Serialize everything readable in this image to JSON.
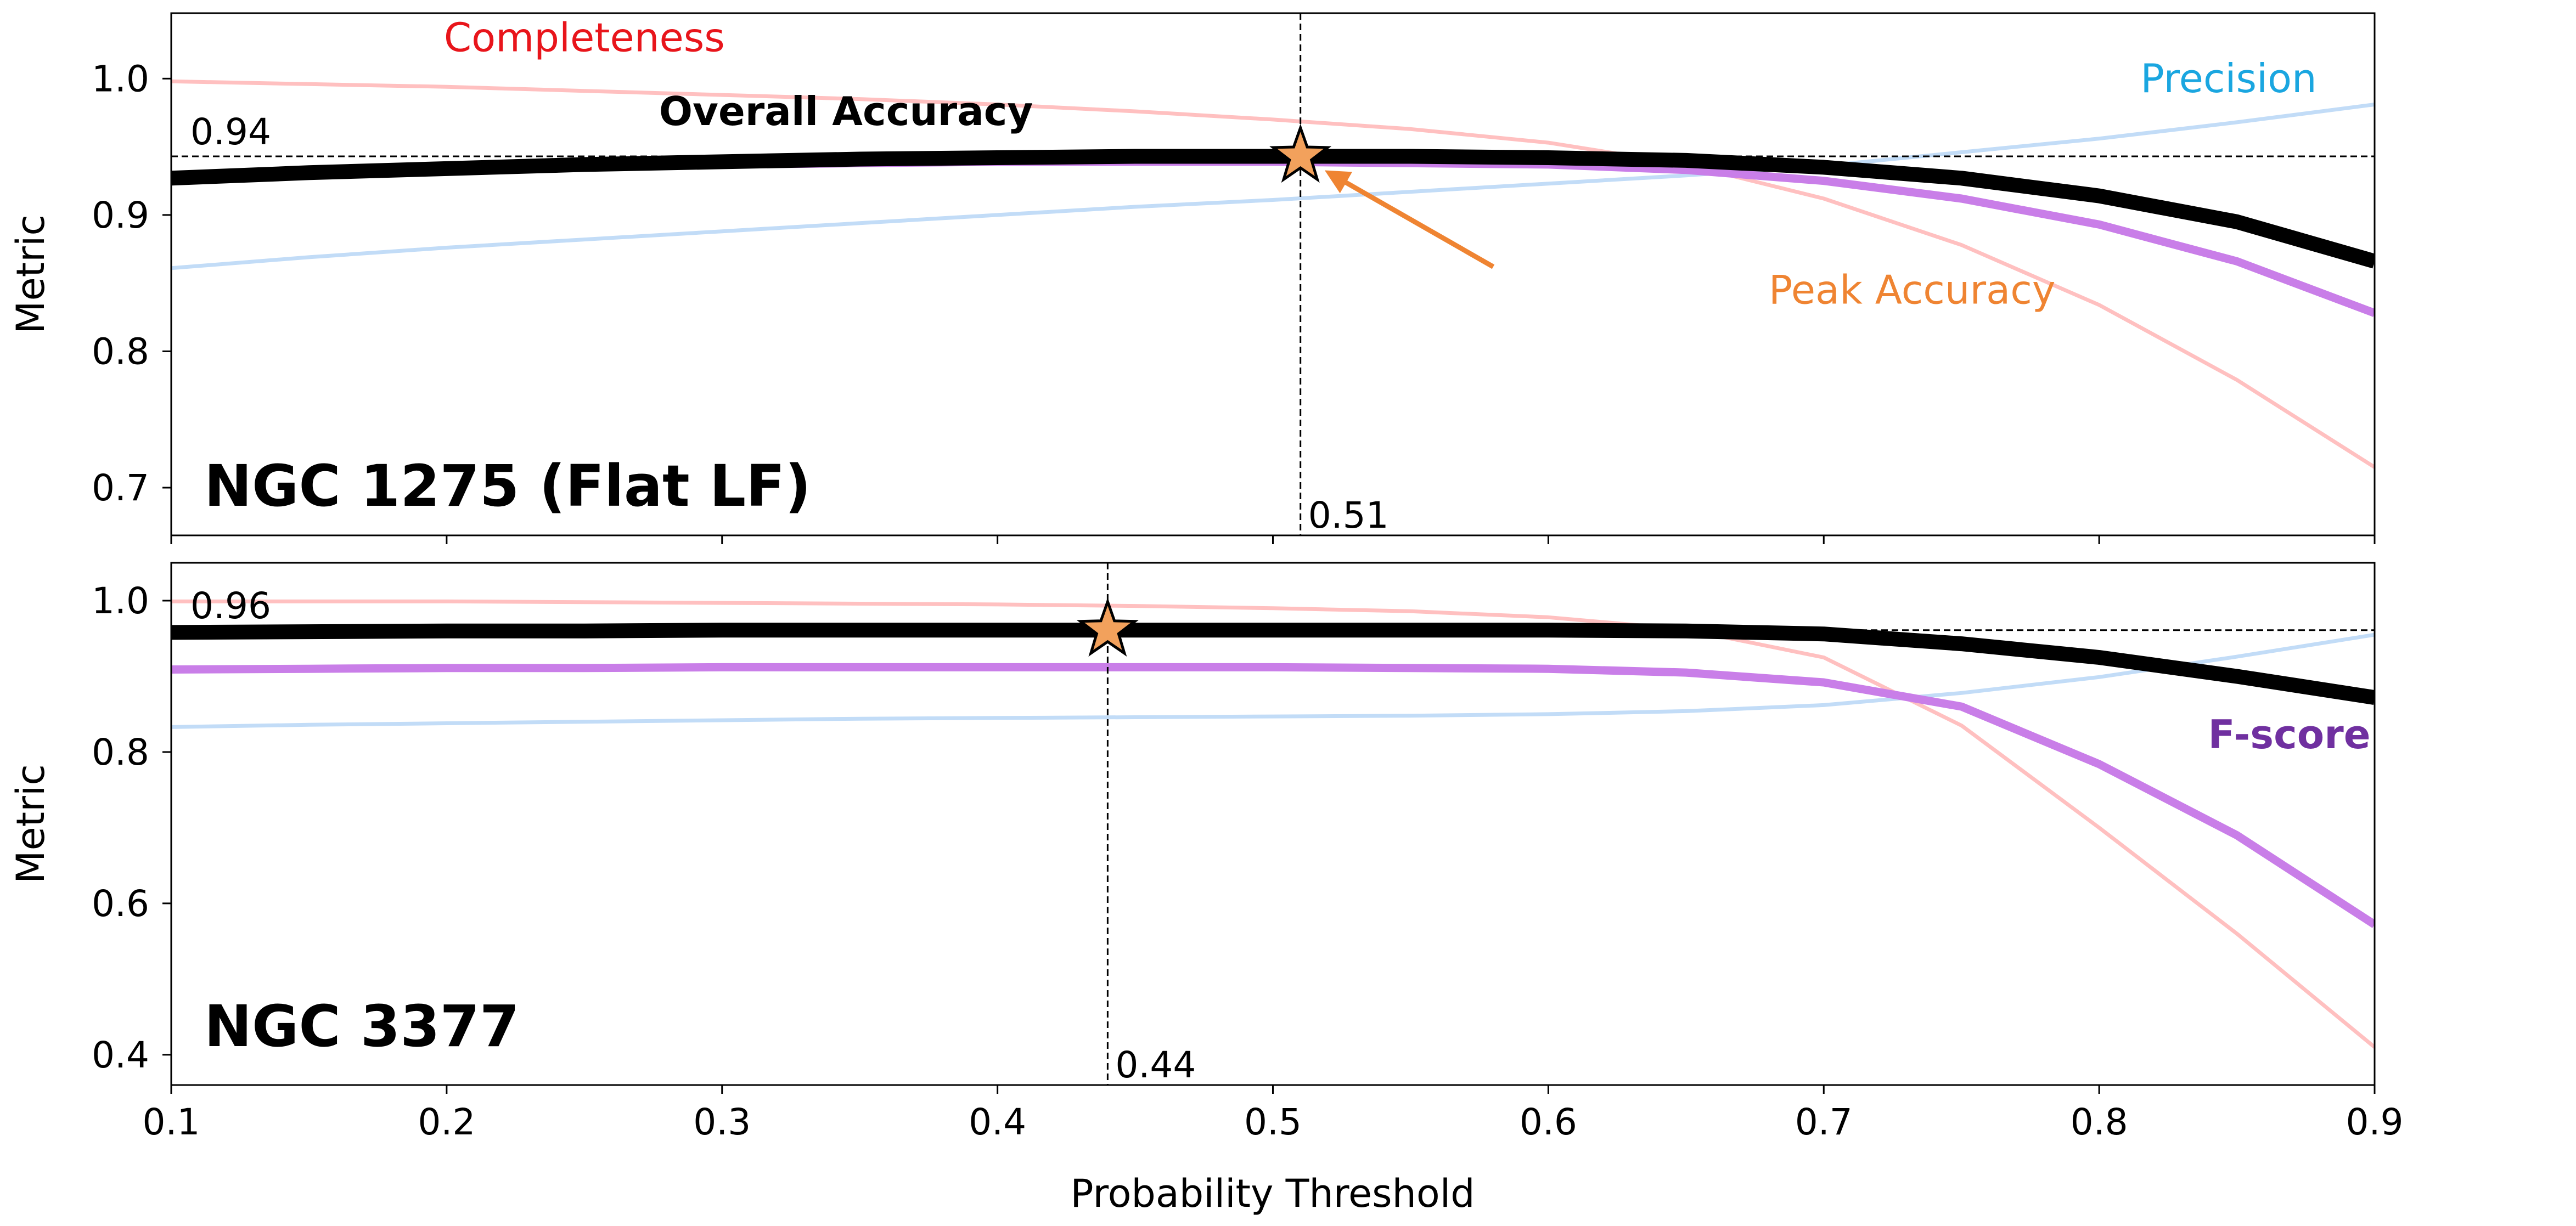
{
  "chart_data": {
    "type": "line",
    "xlabel": "Probability Threshold",
    "xlim": [
      0.1,
      0.9
    ],
    "xticks": [
      0.1,
      0.2,
      0.3,
      0.4,
      0.5,
      0.6,
      0.7,
      0.8,
      0.9
    ],
    "x": [
      0.1,
      0.15,
      0.2,
      0.25,
      0.3,
      0.35,
      0.4,
      0.45,
      0.5,
      0.55,
      0.6,
      0.65,
      0.7,
      0.75,
      0.8,
      0.85,
      0.9
    ],
    "colors": {
      "completeness": "#ffc0c0",
      "precision": "#c2dcf7",
      "fscore": "#c97ee8",
      "accuracy": "#000000",
      "star": "#f2a15c",
      "star_edge": "#000000",
      "completeness_label": "#e8151b",
      "precision_label": "#1aa6e0",
      "fscore_label": "#7030a0",
      "peak_label": "#ef8432"
    },
    "panels": [
      {
        "id": "top",
        "title": "NGC 1275 (Flat LF)",
        "ylabel": "Metric",
        "ylim": [
          0.665,
          1.048
        ],
        "yticks": [
          0.7,
          0.8,
          0.9,
          1.0
        ],
        "series": [
          {
            "key": "precision",
            "name": "Precision",
            "values": [
              0.861,
              0.869,
              0.876,
              0.882,
              0.888,
              0.894,
              0.9,
              0.906,
              0.911,
              0.917,
              0.923,
              0.929,
              0.936,
              0.946,
              0.956,
              0.968,
              0.981
            ]
          },
          {
            "key": "completeness",
            "name": "Completeness",
            "values": [
              0.998,
              0.996,
              0.994,
              0.991,
              0.988,
              0.985,
              0.981,
              0.976,
              0.97,
              0.963,
              0.953,
              0.937,
              0.912,
              0.878,
              0.834,
              0.779,
              0.715
            ]
          },
          {
            "key": "fscore",
            "name": "F-score",
            "values": [
              0.927,
              0.93,
              0.933,
              0.935,
              0.937,
              0.938,
              0.939,
              0.939,
              0.939,
              0.938,
              0.937,
              0.933,
              0.925,
              0.912,
              0.893,
              0.866,
              0.828
            ]
          },
          {
            "key": "accuracy",
            "name": "Overall Accuracy",
            "values": [
              0.927,
              0.931,
              0.934,
              0.937,
              0.939,
              0.941,
              0.942,
              0.943,
              0.943,
              0.943,
              0.942,
              0.94,
              0.935,
              0.927,
              0.914,
              0.895,
              0.866
            ]
          }
        ],
        "peak": {
          "x": 0.51,
          "y": 0.943,
          "x_label": "0.51",
          "y_label": "0.94"
        },
        "annotations": [
          {
            "key": "completeness",
            "text": "Completeness",
            "x": 0.25,
            "y": 1.02
          },
          {
            "key": "accuracy",
            "text": "Overall Accuracy",
            "x": 0.345,
            "y": 0.966
          },
          {
            "key": "precision",
            "text": "Precision",
            "x": 0.815,
            "y": 0.99
          },
          {
            "key": "peak",
            "text": "Peak Accuracy",
            "x": 0.68,
            "y": 0.835
          }
        ]
      },
      {
        "id": "bottom",
        "title": "NGC 3377",
        "ylabel": "Metric",
        "ylim": [
          0.36,
          1.05
        ],
        "yticks": [
          0.4,
          0.6,
          0.8,
          1.0
        ],
        "series": [
          {
            "key": "precision",
            "name": "Precision",
            "values": [
              0.833,
              0.836,
              0.838,
              0.84,
              0.842,
              0.844,
              0.845,
              0.846,
              0.847,
              0.848,
              0.85,
              0.854,
              0.862,
              0.878,
              0.899,
              0.926,
              0.955
            ]
          },
          {
            "key": "completeness",
            "name": "Completeness",
            "values": [
              0.999,
              0.999,
              0.999,
              0.998,
              0.997,
              0.996,
              0.995,
              0.993,
              0.99,
              0.986,
              0.978,
              0.962,
              0.925,
              0.835,
              0.7,
              0.56,
              0.41
            ]
          },
          {
            "key": "fscore",
            "name": "F-score",
            "values": [
              0.909,
              0.91,
              0.911,
              0.911,
              0.912,
              0.912,
              0.912,
              0.912,
              0.912,
              0.911,
              0.91,
              0.905,
              0.892,
              0.86,
              0.784,
              0.69,
              0.572
            ]
          },
          {
            "key": "accuracy",
            "name": "Overall Accuracy",
            "values": [
              0.958,
              0.959,
              0.96,
              0.96,
              0.961,
              0.961,
              0.961,
              0.961,
              0.961,
              0.961,
              0.961,
              0.96,
              0.956,
              0.943,
              0.925,
              0.9,
              0.872
            ]
          }
        ],
        "peak": {
          "x": 0.44,
          "y": 0.961,
          "x_label": "0.44",
          "y_label": "0.96"
        },
        "annotations": [
          {
            "key": "fscore",
            "text": "F-score",
            "x": 0.8395,
            "y": 0.805
          }
        ]
      }
    ]
  }
}
